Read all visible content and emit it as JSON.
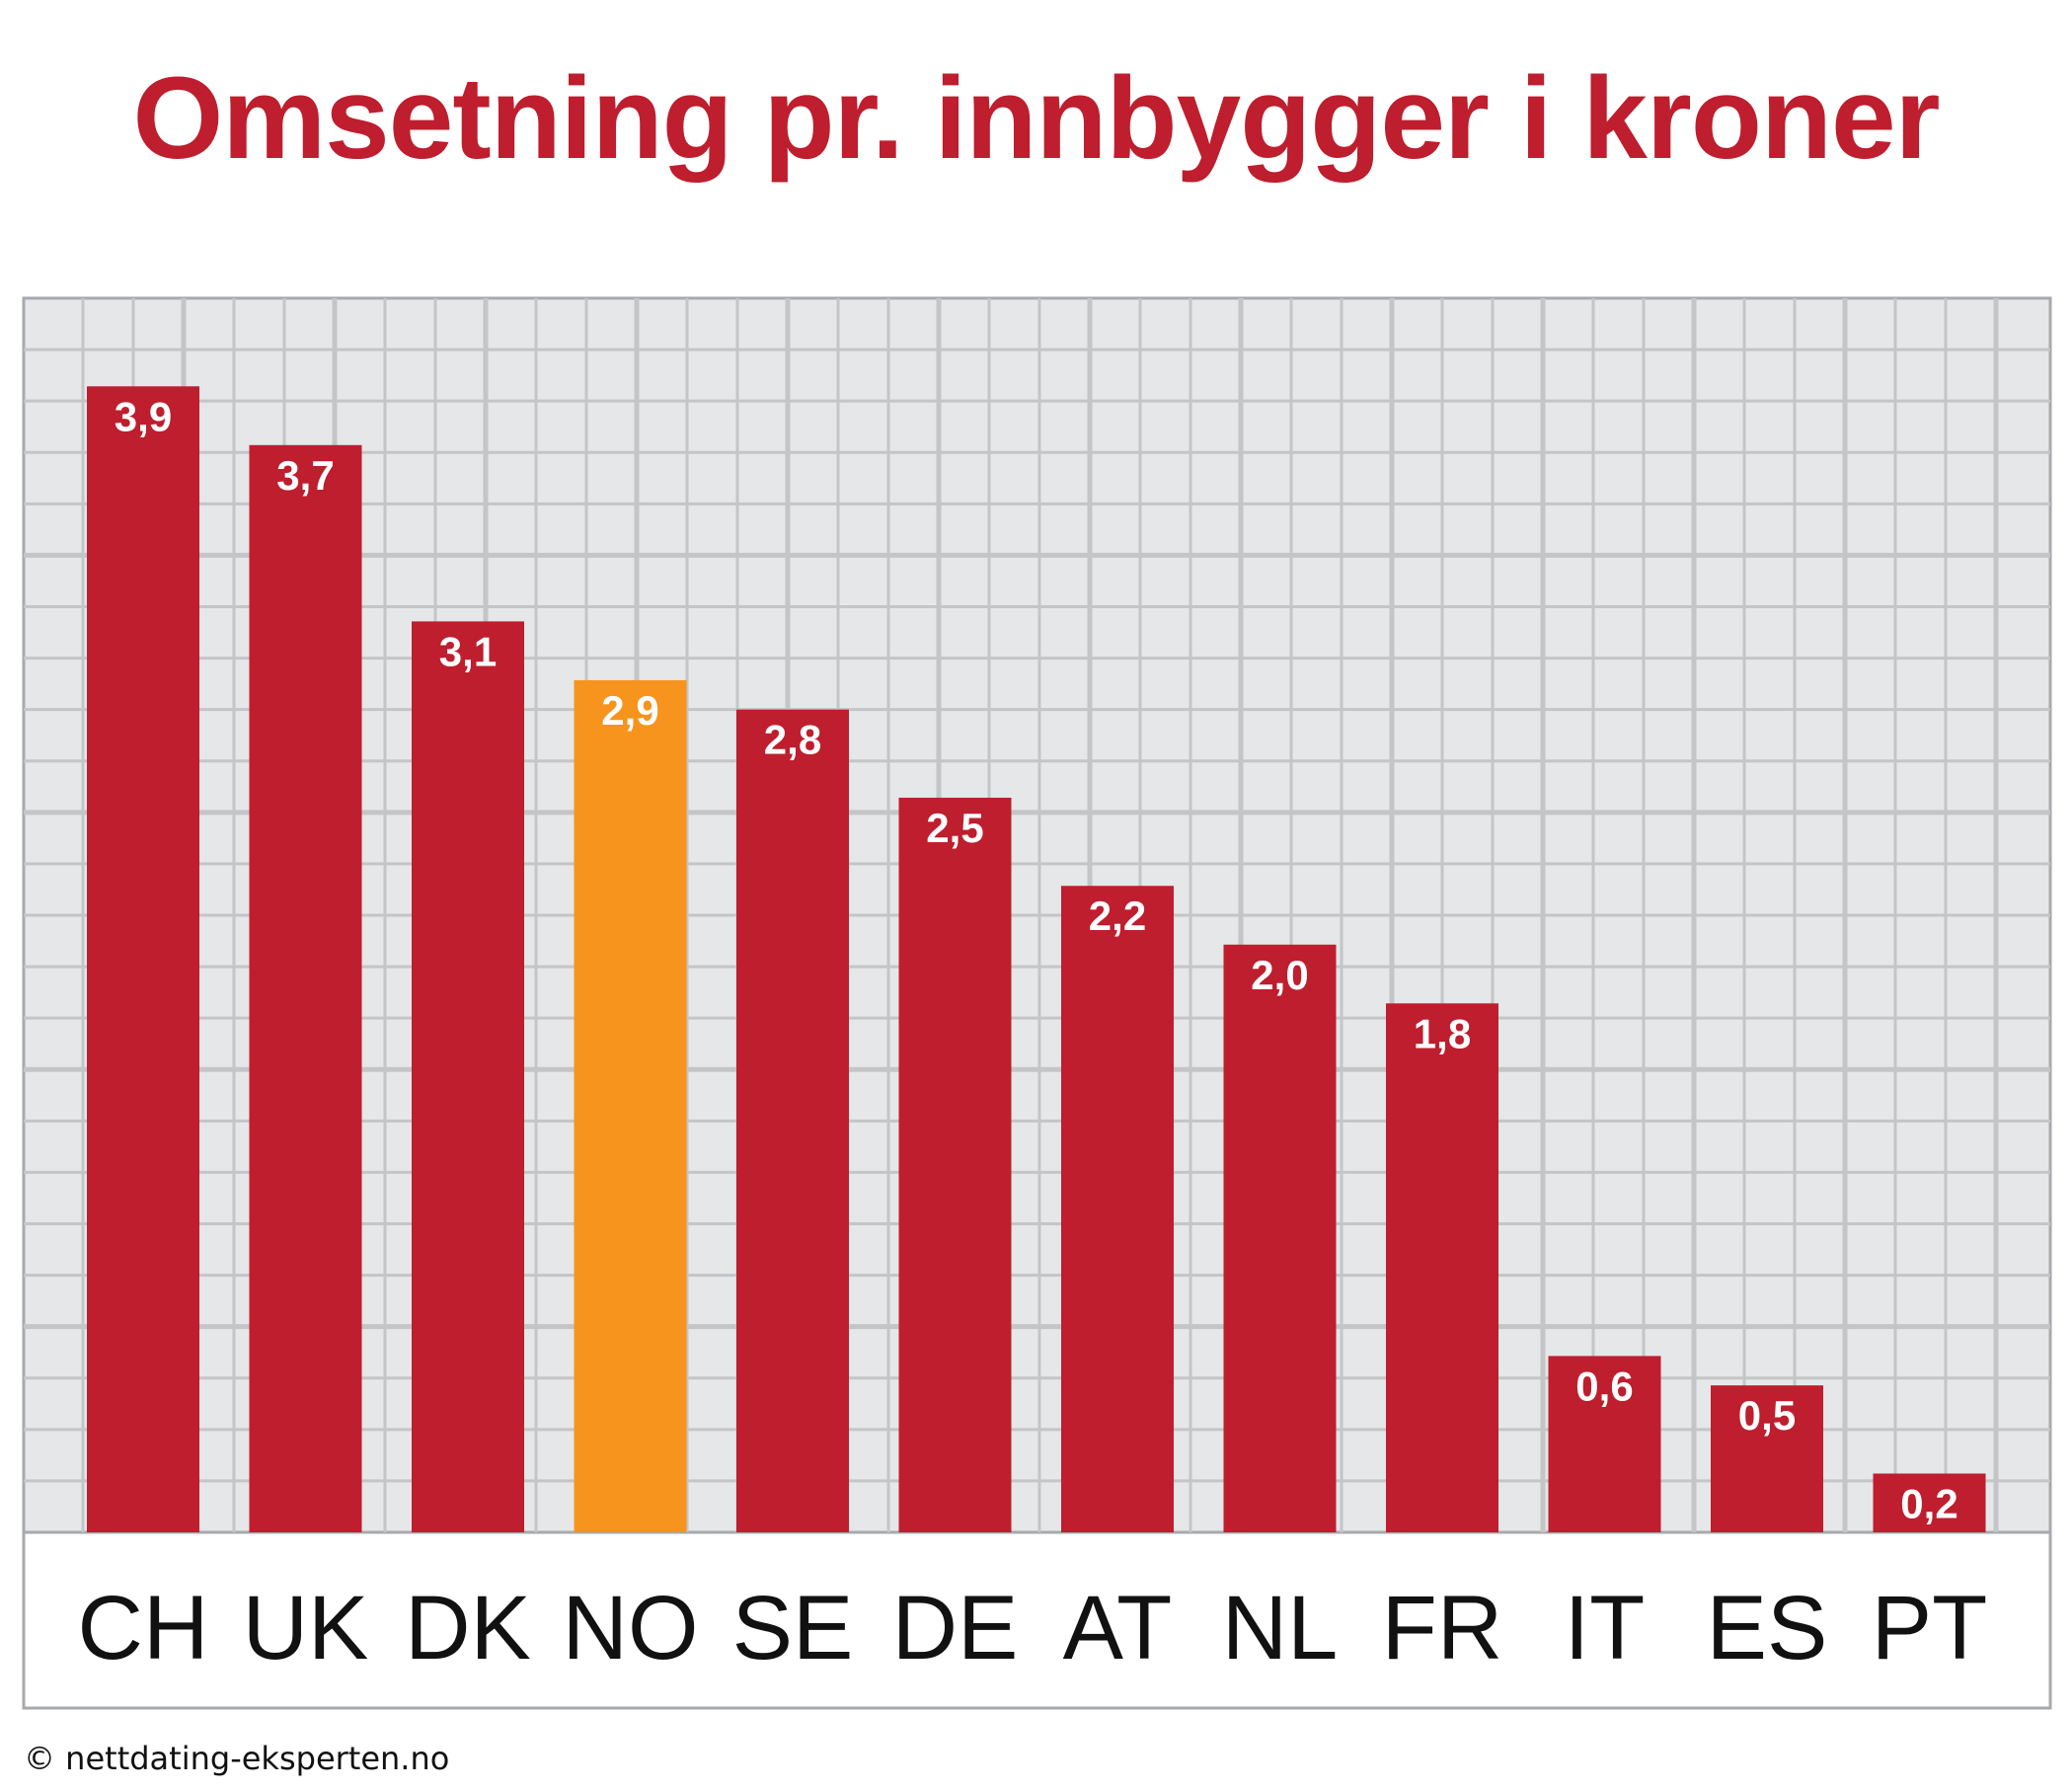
{
  "chart_data": {
    "type": "bar",
    "title": "Omsetning pr. innbygger i kroner",
    "xlabel": "",
    "ylabel": "",
    "categories": [
      "CH",
      "UK",
      "DK",
      "NO",
      "SE",
      "DE",
      "AT",
      "NL",
      "FR",
      "IT",
      "ES",
      "PT"
    ],
    "values": [
      3.9,
      3.7,
      3.1,
      2.9,
      2.8,
      2.5,
      2.2,
      2.0,
      1.8,
      0.6,
      0.5,
      0.2
    ],
    "value_labels": [
      "3,9",
      "3,7",
      "3,1",
      "2,9",
      "2,8",
      "2,5",
      "2,2",
      "2,0",
      "1,8",
      "0,6",
      "0,5",
      "0,2"
    ],
    "highlight_category": "NO",
    "ylim": [
      0,
      4.2
    ],
    "grid": true,
    "legend": "none"
  },
  "colors": {
    "bar": "#be1e2d",
    "highlight_bar": "#f7941d",
    "title": "#be1e2d",
    "plot_background": "#e6e7e9",
    "grid": "#c4c5c7"
  },
  "credit": "© nettdating-eksperten.no"
}
